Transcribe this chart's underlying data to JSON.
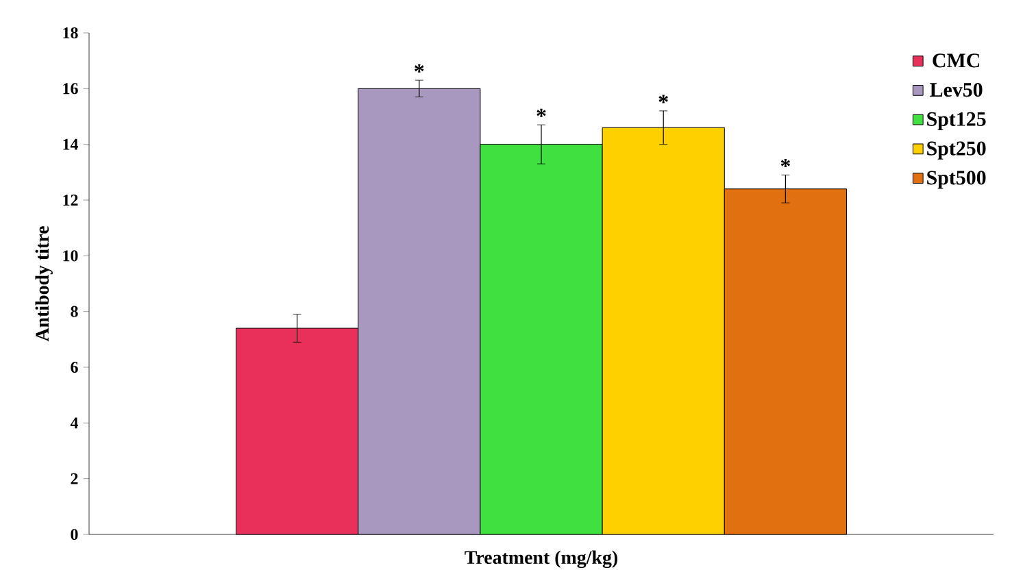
{
  "chart_data": {
    "type": "bar",
    "xlabel": "Treatment (mg/kg)",
    "ylabel": "Antibody titre",
    "categories": [
      null
    ],
    "series": [
      {
        "name": "CMC",
        "color": "#e8305a",
        "values": [
          7.4
        ],
        "errors": [
          0.5
        ]
      },
      {
        "name": "Lev50",
        "color": "#a898c0",
        "values": [
          16.0
        ],
        "errors": [
          0.3
        ]
      },
      {
        "name": "Spt125",
        "color": "#40e040",
        "values": [
          14.0
        ],
        "errors": [
          0.7
        ]
      },
      {
        "name": "Spt250",
        "color": "#ffd000",
        "values": [
          14.6
        ],
        "errors": [
          0.6
        ]
      },
      {
        "name": "Spt500",
        "color": "#e07010",
        "values": [
          12.4
        ],
        "errors": [
          0.5
        ]
      }
    ],
    "annotations": [
      "*",
      "*",
      "*",
      "*"
    ],
    "ylim": [
      0,
      18
    ],
    "yticks": [
      0,
      2,
      4,
      6,
      8,
      10,
      12,
      14,
      16,
      18
    ],
    "grid": false,
    "legend": "right"
  }
}
